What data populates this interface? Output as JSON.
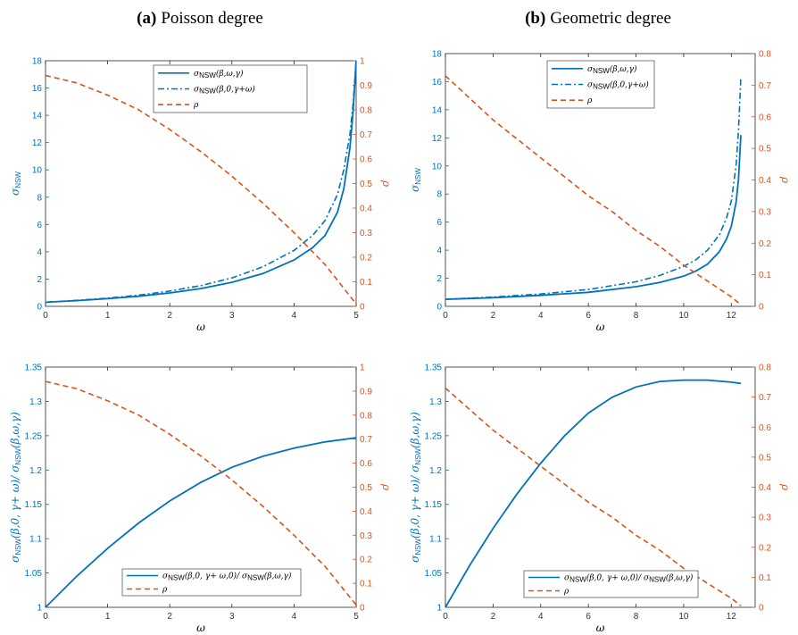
{
  "titles": [
    {
      "tag": "(a)",
      "text": "Poisson degree"
    },
    {
      "tag": "(b)",
      "text": "Geometric degree"
    }
  ],
  "colors": {
    "blue": "#0072BD",
    "orange": "#D95319"
  },
  "chart_data": [
    {
      "type": "line",
      "panel": "a-top",
      "xlabel": "ω",
      "ylabel": "σNSW",
      "ylabel_right": "ρ",
      "xlim": [
        0,
        5
      ],
      "xticks": [
        0,
        1,
        2,
        3,
        4,
        5
      ],
      "ylim": [
        0,
        18
      ],
      "yticks": [
        0,
        2,
        4,
        6,
        8,
        10,
        12,
        14,
        16,
        18
      ],
      "ylim_right": [
        0,
        1
      ],
      "yticks_right": [
        0,
        0.1,
        0.2,
        0.3,
        0.4,
        0.5,
        0.6,
        0.7,
        0.8,
        0.9,
        1
      ],
      "legend_position": "top-center",
      "series": [
        {
          "name": "σNSW(β,ω,γ)",
          "axis": "left",
          "style": "solid",
          "color": "#0072BD",
          "x": [
            0,
            0.5,
            1,
            1.5,
            2,
            2.5,
            3,
            3.5,
            4,
            4.3,
            4.5,
            4.7,
            4.8,
            4.9,
            4.95,
            5
          ],
          "y": [
            0.3,
            0.42,
            0.56,
            0.74,
            0.98,
            1.3,
            1.76,
            2.4,
            3.4,
            4.3,
            5.2,
            6.9,
            8.6,
            11.6,
            14.2,
            18
          ]
        },
        {
          "name": "σNSW(β,0,γ+ω)",
          "axis": "left",
          "style": "dashdot",
          "color": "#0072BD",
          "x": [
            0,
            0.5,
            1,
            1.5,
            2,
            2.5,
            3,
            3.5,
            4,
            4.3,
            4.5,
            4.7,
            4.8,
            4.9,
            4.95,
            5
          ],
          "y": [
            0.3,
            0.44,
            0.6,
            0.82,
            1.12,
            1.52,
            2.08,
            2.9,
            4.1,
            5.2,
            6.3,
            8.2,
            10.0,
            12.6,
            14.8,
            18
          ]
        },
        {
          "name": "ρ",
          "axis": "right",
          "style": "dashed",
          "color": "#D95319",
          "x": [
            0,
            0.5,
            1,
            1.5,
            2,
            2.5,
            3,
            3.5,
            4,
            4.5,
            5
          ],
          "y": [
            0.94,
            0.91,
            0.86,
            0.8,
            0.72,
            0.63,
            0.53,
            0.42,
            0.3,
            0.17,
            0.01
          ]
        }
      ]
    },
    {
      "type": "line",
      "panel": "b-top",
      "xlabel": "ω",
      "ylabel": "σNSW",
      "ylabel_right": "ρ",
      "xlim": [
        0,
        13
      ],
      "xticks": [
        0,
        2,
        4,
        6,
        8,
        10,
        12
      ],
      "ylim": [
        0,
        18
      ],
      "yticks": [
        0,
        2,
        4,
        6,
        8,
        10,
        12,
        14,
        16,
        18
      ],
      "ylim_right": [
        0,
        0.8
      ],
      "yticks_right": [
        0,
        0.1,
        0.2,
        0.3,
        0.4,
        0.5,
        0.6,
        0.7,
        0.8
      ],
      "legend_position": "top-center",
      "series": [
        {
          "name": "σNSW(β,ω,γ)",
          "axis": "left",
          "style": "solid",
          "color": "#0072BD",
          "x": [
            0,
            2,
            4,
            6,
            8,
            9,
            10,
            10.5,
            11,
            11.5,
            11.8,
            12,
            12.2,
            12.3,
            12.4
          ],
          "y": [
            0.5,
            0.62,
            0.78,
            1.0,
            1.4,
            1.7,
            2.15,
            2.5,
            3.0,
            3.9,
            4.8,
            5.7,
            7.4,
            9.0,
            12.2
          ]
        },
        {
          "name": "σNSW(β,0,γ+ω)",
          "axis": "left",
          "style": "dashdot",
          "color": "#0072BD",
          "x": [
            0,
            2,
            4,
            6,
            8,
            9,
            10,
            10.5,
            11,
            11.5,
            11.8,
            12,
            12.2,
            12.3,
            12.4
          ],
          "y": [
            0.5,
            0.66,
            0.88,
            1.2,
            1.75,
            2.2,
            2.85,
            3.3,
            4.0,
            5.1,
            6.3,
            7.5,
            10.0,
            12.5,
            16.3
          ]
        },
        {
          "name": "ρ",
          "axis": "right",
          "style": "dashed",
          "color": "#D95319",
          "x": [
            0,
            1,
            2,
            3,
            4,
            5,
            6,
            7,
            8,
            9,
            10,
            11,
            12,
            12.4
          ],
          "y": [
            0.73,
            0.66,
            0.59,
            0.53,
            0.47,
            0.41,
            0.35,
            0.3,
            0.24,
            0.19,
            0.13,
            0.08,
            0.03,
            0.005
          ]
        }
      ]
    },
    {
      "type": "line",
      "panel": "a-bottom",
      "xlabel": "ω",
      "ylabel": "σNSW(β,0, γ+ ω)/ σNSW(β,ω,γ)",
      "ylabel_right": "ρ",
      "xlim": [
        0,
        5
      ],
      "xticks": [
        0,
        1,
        2,
        3,
        4,
        5
      ],
      "ylim": [
        1,
        1.35
      ],
      "yticks": [
        1,
        1.05,
        1.1,
        1.15,
        1.2,
        1.25,
        1.3,
        1.35
      ],
      "ylim_right": [
        0,
        1
      ],
      "yticks_right": [
        0,
        0.1,
        0.2,
        0.3,
        0.4,
        0.5,
        0.6,
        0.7,
        0.8,
        0.9,
        1
      ],
      "legend_position": "bottom-center",
      "series": [
        {
          "name": "σNSW(β,0, γ+ ω,0)/ σNSW(β,ω,γ)",
          "axis": "left",
          "style": "solid",
          "color": "#0072BD",
          "x": [
            0,
            0.5,
            1,
            1.5,
            2,
            2.5,
            3,
            3.5,
            4,
            4.5,
            5
          ],
          "y": [
            1.0,
            1.045,
            1.086,
            1.123,
            1.155,
            1.182,
            1.204,
            1.22,
            1.232,
            1.241,
            1.247
          ]
        },
        {
          "name": "ρ",
          "axis": "right",
          "style": "dashed",
          "color": "#D95319",
          "x": [
            0,
            0.5,
            1,
            1.5,
            2,
            2.5,
            3,
            3.5,
            4,
            4.5,
            5
          ],
          "y": [
            0.94,
            0.91,
            0.86,
            0.8,
            0.72,
            0.63,
            0.53,
            0.42,
            0.3,
            0.17,
            0.01
          ]
        }
      ]
    },
    {
      "type": "line",
      "panel": "b-bottom",
      "xlabel": "ω",
      "ylabel": "σNSW(β,0, γ+ ω)/ σNSW(β,ω,γ)",
      "ylabel_right": "ρ",
      "xlim": [
        0,
        13
      ],
      "xticks": [
        0,
        2,
        4,
        6,
        8,
        10,
        12
      ],
      "ylim": [
        1,
        1.35
      ],
      "yticks": [
        1,
        1.05,
        1.1,
        1.15,
        1.2,
        1.25,
        1.3,
        1.35
      ],
      "ylim_right": [
        0,
        0.8
      ],
      "yticks_right": [
        0,
        0.1,
        0.2,
        0.3,
        0.4,
        0.5,
        0.6,
        0.7,
        0.8
      ],
      "legend_position": "bottom-center",
      "series": [
        {
          "name": "σNSW(β,0, γ+ ω,0)/ σNSW(β,ω,γ)",
          "axis": "left",
          "style": "solid",
          "color": "#0072BD",
          "x": [
            0,
            1,
            2,
            3,
            4,
            5,
            6,
            7,
            8,
            9,
            10,
            11,
            12,
            12.4
          ],
          "y": [
            1.0,
            1.06,
            1.115,
            1.165,
            1.21,
            1.25,
            1.283,
            1.306,
            1.321,
            1.329,
            1.331,
            1.331,
            1.328,
            1.326
          ]
        },
        {
          "name": "ρ",
          "axis": "right",
          "style": "dashed",
          "color": "#D95319",
          "x": [
            0,
            1,
            2,
            3,
            4,
            5,
            6,
            7,
            8,
            9,
            10,
            11,
            12,
            12.4
          ],
          "y": [
            0.73,
            0.66,
            0.59,
            0.53,
            0.47,
            0.41,
            0.35,
            0.3,
            0.24,
            0.19,
            0.13,
            0.08,
            0.03,
            0.005
          ]
        }
      ]
    }
  ]
}
